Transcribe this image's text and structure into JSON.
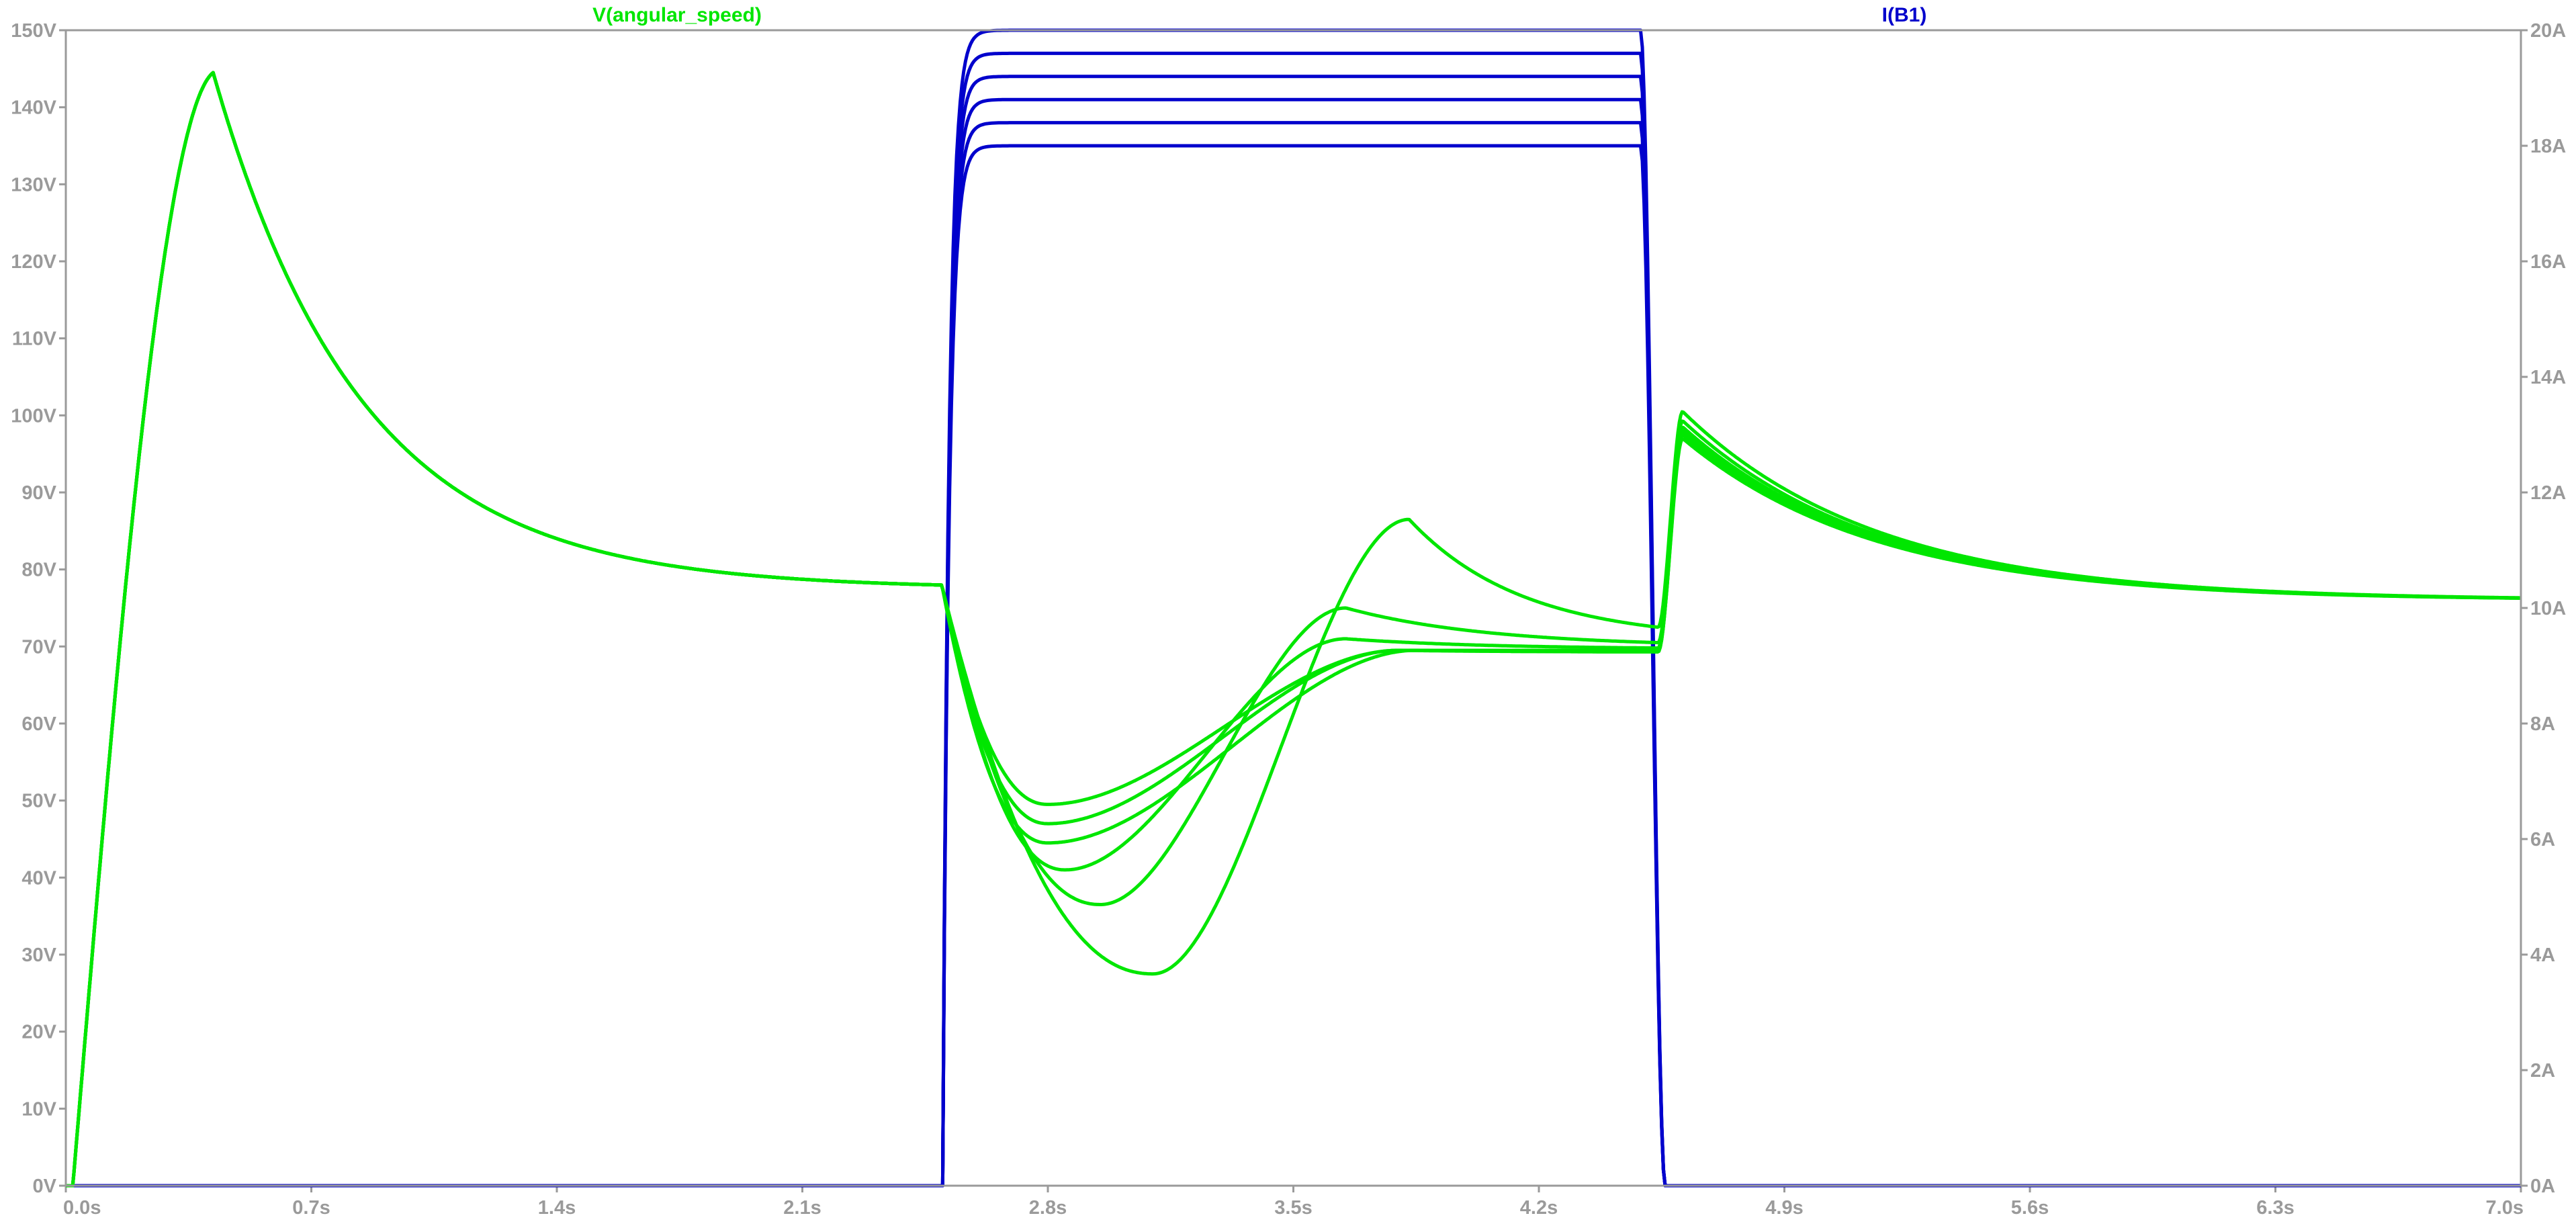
{
  "chart_data": {
    "type": "line",
    "x_label_unit": "s",
    "xlim": [
      0,
      7
    ],
    "x_ticks": [
      "0.0s",
      "0.7s",
      "1.4s",
      "2.1s",
      "2.8s",
      "3.5s",
      "4.2s",
      "4.9s",
      "5.6s",
      "6.3s",
      "7.0s"
    ],
    "y_left": {
      "ylim": [
        0,
        150
      ],
      "ticks": [
        "0V",
        "10V",
        "20V",
        "30V",
        "40V",
        "50V",
        "60V",
        "70V",
        "80V",
        "90V",
        "100V",
        "110V",
        "120V",
        "130V",
        "140V",
        "150V"
      ]
    },
    "y_right": {
      "ylim": [
        0,
        20
      ],
      "ticks": [
        "0A",
        "2A",
        "4A",
        "6A",
        "8A",
        "10A",
        "12A",
        "14A",
        "16A",
        "18A",
        "20A"
      ]
    },
    "series": [
      {
        "name": "V(angular_speed)",
        "color": "#00e600",
        "axis": "left",
        "runs": [
          {
            "mid_min": 49.5,
            "mid_min_t": 2.8,
            "mid_peak": 69.5,
            "mid_peak_t": 3.8,
            "end": 69.5,
            "post_peak": 97.0
          },
          {
            "mid_min": 47.0,
            "mid_min_t": 2.8,
            "mid_peak": 69.5,
            "mid_peak_t": 3.8,
            "end": 69.3,
            "post_peak": 97.5
          },
          {
            "mid_min": 44.5,
            "mid_min_t": 2.8,
            "mid_peak": 69.5,
            "mid_peak_t": 3.85,
            "end": 69.3,
            "post_peak": 98.0
          },
          {
            "mid_min": 41.0,
            "mid_min_t": 2.85,
            "mid_peak": 71.0,
            "mid_peak_t": 3.65,
            "end": 69.8,
            "post_peak": 98.5
          },
          {
            "mid_min": 36.5,
            "mid_min_t": 2.95,
            "mid_peak": 75.0,
            "mid_peak_t": 3.65,
            "end": 70.5,
            "post_peak": 99.3
          },
          {
            "mid_min": 27.5,
            "mid_min_t": 3.1,
            "mid_peak": 86.5,
            "mid_peak_t": 3.83,
            "end": 72.5,
            "post_peak": 100.5
          }
        ],
        "initial_peak": 144.5,
        "initial_peak_t": 0.42,
        "settle_before_step": 77.5,
        "final_value": 76.0
      },
      {
        "name": "I(B1)",
        "color": "#0000cc",
        "axis": "right",
        "pulse_start": 2.5,
        "pulse_end": 4.52,
        "plateaus": [
          20.0,
          19.6,
          19.2,
          18.8,
          18.4,
          18.0
        ]
      }
    ]
  }
}
